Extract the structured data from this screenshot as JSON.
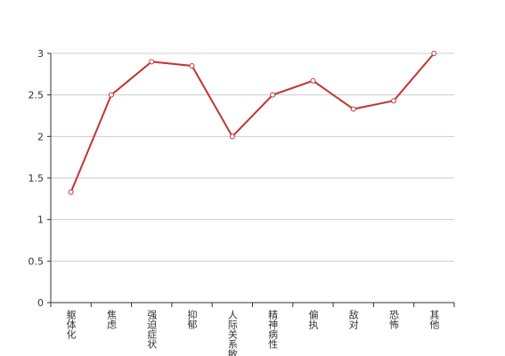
{
  "chart_data": {
    "type": "line",
    "categories": [
      "躯体化",
      "焦虑",
      "强迫症状",
      "抑郁",
      "人际关系敏感",
      "精神病性",
      "偏执",
      "敌对",
      "恐怖",
      "其他"
    ],
    "values": [
      1.33,
      2.5,
      2.9,
      2.85,
      2.0,
      2.5,
      2.67,
      2.33,
      2.43,
      3.0
    ],
    "color": "#c23531",
    "ylim": [
      0,
      3
    ],
    "yticks": [
      0,
      0.5,
      1,
      1.5,
      2,
      2.5,
      3
    ],
    "grid": true
  }
}
